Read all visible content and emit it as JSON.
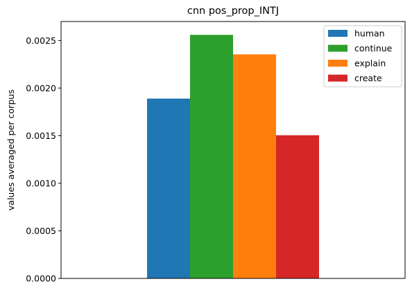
{
  "chart_data": {
    "type": "bar",
    "title": "cnn pos_prop_INTJ",
    "xlabel": "",
    "ylabel": "values averaged per corpus",
    "ylim": [
      0,
      0.0027
    ],
    "yticks": [
      "0.0000",
      "0.0005",
      "0.0010",
      "0.0015",
      "0.0020",
      "0.0025"
    ],
    "ytick_values": [
      0,
      0.0005,
      0.001,
      0.0015,
      0.002,
      0.0025
    ],
    "grid": false,
    "legend_position": "top-right",
    "series": [
      {
        "name": "human",
        "value": 0.00189,
        "color": "#1f77b4"
      },
      {
        "name": "continue",
        "value": 0.00256,
        "color": "#2ca02c"
      },
      {
        "name": "explain",
        "value": 0.002355,
        "color": "#ff7f0e"
      },
      {
        "name": "create",
        "value": 0.001505,
        "color": "#d62728"
      }
    ]
  }
}
